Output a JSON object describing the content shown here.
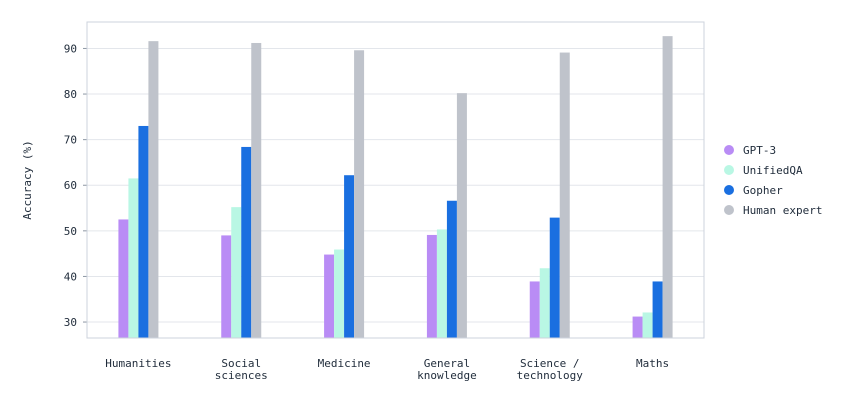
{
  "chart_data": {
    "type": "bar",
    "ylabel": "Accuracy (%)",
    "xlabel": "",
    "ylim": [
      26.5,
      95.8
    ],
    "yticks": [
      30,
      40,
      50,
      60,
      70,
      80,
      90
    ],
    "grid": true,
    "legend_position": "right",
    "categories": [
      [
        "Humanities"
      ],
      [
        "Social",
        "sciences"
      ],
      [
        "Medicine"
      ],
      [
        "General",
        "knowledge"
      ],
      [
        "Science /",
        "technology"
      ],
      [
        "Maths"
      ]
    ],
    "series": [
      {
        "name": "GPT-3",
        "color": "#b98cf5",
        "values": [
          52.5,
          49.0,
          44.8,
          49.1,
          38.9,
          31.2
        ]
      },
      {
        "name": "UnifiedQA",
        "color": "#b9f7e4",
        "values": [
          61.5,
          55.2,
          45.9,
          50.3,
          41.8,
          32.1
        ]
      },
      {
        "name": "Gopher",
        "color": "#1a6fe0",
        "values": [
          73.0,
          68.4,
          62.2,
          56.6,
          52.9,
          38.9
        ]
      },
      {
        "name": "Human expert",
        "color": "#bfc3cb",
        "values": [
          91.6,
          91.2,
          89.6,
          80.2,
          89.1,
          92.7
        ]
      }
    ]
  }
}
